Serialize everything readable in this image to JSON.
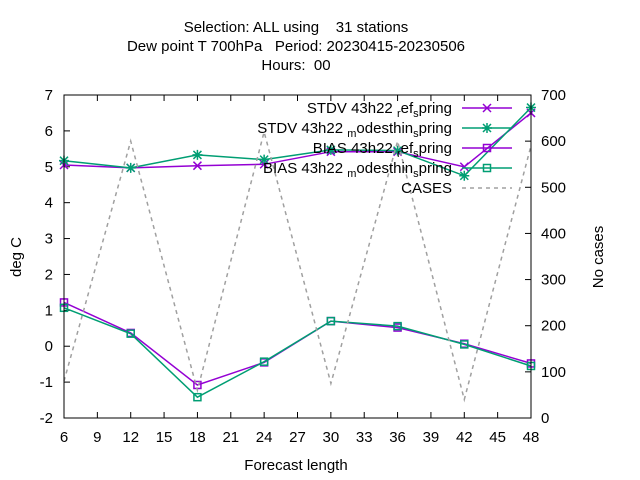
{
  "chart_data": {
    "type": "line",
    "title_lines": [
      "Selection: ALL using    31 stations",
      "Dew point T 700hPa   Period: 20230415-20230506",
      "Hours:  00"
    ],
    "xlabel": "Forecast length",
    "ylabel": "deg C",
    "y2label": "No cases",
    "xlim": [
      6,
      48
    ],
    "ylim": [
      -2,
      7
    ],
    "y2lim": [
      0,
      700
    ],
    "x_ticks": [
      6,
      9,
      12,
      15,
      18,
      21,
      24,
      27,
      30,
      33,
      36,
      39,
      42,
      45,
      48
    ],
    "y_ticks": [
      -2,
      -1,
      0,
      1,
      2,
      3,
      4,
      5,
      6,
      7
    ],
    "y2_ticks": [
      0,
      100,
      200,
      300,
      400,
      500,
      600,
      700
    ],
    "grid": false,
    "legend_position": "top-right",
    "x": [
      6,
      12,
      18,
      24,
      30,
      36,
      42,
      48
    ],
    "series": [
      {
        "name": "STDV 43h22_ref_spring",
        "legend_text": "STDV 43h22",
        "legend_sub": "ref",
        "legend_mid": "s",
        "legend_tail": "pring",
        "axis": "y",
        "color": "#9400d3",
        "marker": "x",
        "dash": false,
        "values": [
          5.05,
          4.97,
          5.03,
          5.07,
          5.42,
          5.42,
          5.0,
          6.5
        ]
      },
      {
        "name": "STDV 43h22_modesthin_spring",
        "legend_text": "STDV 43h22",
        "legend_sub": "modesthin",
        "legend_mid": "s",
        "legend_tail": "pring",
        "axis": "y",
        "color": "#009e73",
        "marker": "star",
        "dash": false,
        "values": [
          5.17,
          4.97,
          5.33,
          5.2,
          5.47,
          5.45,
          4.75,
          6.65
        ]
      },
      {
        "name": "BIAS 43h22_ref_spring",
        "legend_text": "BIAS 43h22",
        "legend_sub": "ref",
        "legend_mid": "s",
        "legend_tail": "pring",
        "axis": "y",
        "color": "#9400d3",
        "marker": "square",
        "dash": false,
        "values": [
          1.22,
          0.37,
          -1.08,
          -0.45,
          0.7,
          0.52,
          0.07,
          -0.48
        ]
      },
      {
        "name": "BIAS 43h22_modesthin_spring",
        "legend_text": "BIAS 43h22",
        "legend_sub": "modesthin",
        "legend_mid": "s",
        "legend_tail": "pring",
        "axis": "y",
        "color": "#009e73",
        "marker": "square",
        "dash": false,
        "values": [
          1.07,
          0.35,
          -1.42,
          -0.43,
          0.7,
          0.56,
          0.05,
          -0.55
        ]
      },
      {
        "name": "CASES",
        "legend_text": "CASES",
        "legend_sub": "",
        "legend_mid": "",
        "legend_tail": "",
        "axis": "y2",
        "color": "#a0a0a0",
        "marker": "none",
        "dash": true,
        "values": [
          80,
          600,
          60,
          620,
          75,
          600,
          40,
          590
        ]
      }
    ]
  }
}
